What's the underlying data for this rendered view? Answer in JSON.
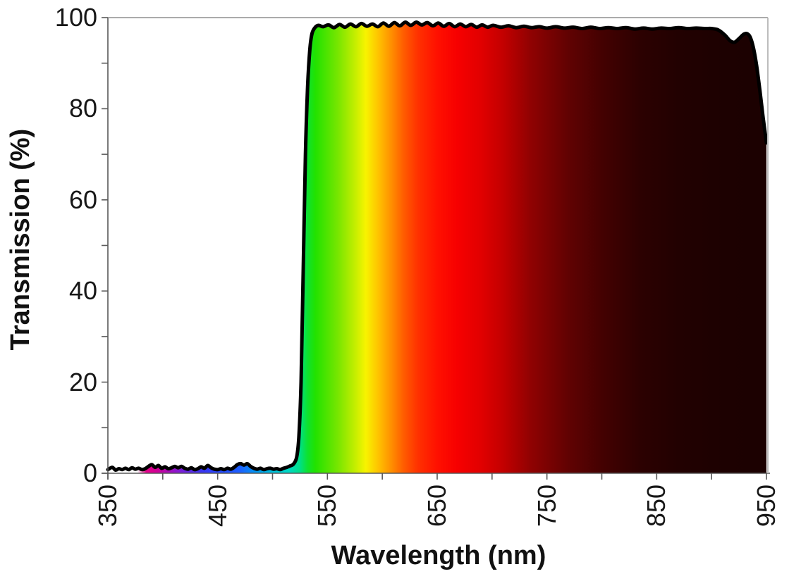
{
  "figure": {
    "background": "#ffffff",
    "curve_color": "#000000",
    "axis_color": "#595959",
    "top_border_color": "#8f8f8f",
    "right_border_color": "#bdbdbd",
    "tick_label_color": "#171717"
  },
  "chart_data": {
    "type": "area",
    "title": "",
    "xlabel": "Wavelength (nm)",
    "ylabel": "Transmission (%)",
    "xlim": [
      350,
      950
    ],
    "ylim": [
      0,
      100
    ],
    "grid": "off",
    "legend": "none",
    "x_tick_labels": [
      "350",
      "450",
      "550",
      "650",
      "750",
      "850",
      "950"
    ],
    "x_major_ticks": [
      350,
      450,
      550,
      650,
      750,
      850,
      950
    ],
    "x_minor_ticks": [
      400,
      500,
      600,
      700,
      800,
      900
    ],
    "y_tick_labels": [
      "0",
      "20",
      "40",
      "60",
      "80",
      "100"
    ],
    "y_major_ticks": [
      0,
      20,
      40,
      60,
      80,
      100
    ],
    "y_minor_ticks": [
      10,
      30,
      50,
      70,
      90
    ],
    "series": [
      {
        "name": "Transmission",
        "points": [
          [
            350,
            0.8
          ],
          [
            354,
            1.3
          ],
          [
            357,
            0.7
          ],
          [
            360,
            1.0
          ],
          [
            363,
            0.8
          ],
          [
            366,
            1.1
          ],
          [
            369,
            0.8
          ],
          [
            372,
            1.2
          ],
          [
            375,
            0.9
          ],
          [
            378,
            1.1
          ],
          [
            381,
            0.8
          ],
          [
            384,
            1.0
          ],
          [
            387,
            1.5
          ],
          [
            390,
            1.9
          ],
          [
            393,
            1.3
          ],
          [
            396,
            1.7
          ],
          [
            399,
            1.1
          ],
          [
            402,
            1.4
          ],
          [
            405,
            1.0
          ],
          [
            408,
            1.2
          ],
          [
            411,
            1.5
          ],
          [
            414,
            1.2
          ],
          [
            417,
            1.5
          ],
          [
            420,
            1.1
          ],
          [
            423,
            0.9
          ],
          [
            426,
            1.2
          ],
          [
            429,
            0.8
          ],
          [
            432,
            1.0
          ],
          [
            435,
            1.4
          ],
          [
            438,
            1.1
          ],
          [
            441,
            1.7
          ],
          [
            444,
            1.2
          ],
          [
            447,
            0.9
          ],
          [
            450,
            0.8
          ],
          [
            453,
            1.0
          ],
          [
            456,
            0.8
          ],
          [
            459,
            1.1
          ],
          [
            462,
            0.9
          ],
          [
            465,
            1.3
          ],
          [
            468,
            1.9
          ],
          [
            471,
            2.1
          ],
          [
            474,
            1.8
          ],
          [
            477,
            2.1
          ],
          [
            480,
            1.5
          ],
          [
            483,
            1.1
          ],
          [
            486,
            0.9
          ],
          [
            489,
            1.1
          ],
          [
            492,
            0.8
          ],
          [
            495,
            1.0
          ],
          [
            498,
            1.1
          ],
          [
            501,
            0.9
          ],
          [
            504,
            1.0
          ],
          [
            507,
            0.8
          ],
          [
            510,
            1.1
          ],
          [
            513,
            1.3
          ],
          [
            516,
            1.6
          ],
          [
            519,
            2.0
          ],
          [
            522,
            3.5
          ],
          [
            524,
            8
          ],
          [
            526,
            20
          ],
          [
            528,
            45
          ],
          [
            530,
            70
          ],
          [
            532,
            85
          ],
          [
            534,
            93
          ],
          [
            536,
            96.5
          ],
          [
            539,
            97.9
          ],
          [
            542,
            98.3
          ],
          [
            546,
            98.0
          ],
          [
            551,
            98.4
          ],
          [
            556,
            97.8
          ],
          [
            561,
            98.5
          ],
          [
            566,
            97.9
          ],
          [
            571,
            98.6
          ],
          [
            576,
            98.0
          ],
          [
            581,
            98.7
          ],
          [
            586,
            98.1
          ],
          [
            591,
            98.6
          ],
          [
            596,
            98.0
          ],
          [
            601,
            98.8
          ],
          [
            606,
            98.1
          ],
          [
            611,
            98.9
          ],
          [
            616,
            98.2
          ],
          [
            621,
            99.0
          ],
          [
            626,
            98.3
          ],
          [
            631,
            99.0
          ],
          [
            636,
            98.4
          ],
          [
            641,
            98.9
          ],
          [
            646,
            98.2
          ],
          [
            651,
            98.8
          ],
          [
            656,
            98.1
          ],
          [
            661,
            98.7
          ],
          [
            666,
            98.0
          ],
          [
            671,
            98.6
          ],
          [
            676,
            98.0
          ],
          [
            681,
            98.5
          ],
          [
            686,
            97.9
          ],
          [
            691,
            98.4
          ],
          [
            696,
            97.9
          ],
          [
            701,
            98.3
          ],
          [
            708,
            97.9
          ],
          [
            715,
            98.2
          ],
          [
            722,
            97.8
          ],
          [
            729,
            98.1
          ],
          [
            736,
            97.8
          ],
          [
            743,
            98.0
          ],
          [
            750,
            97.7
          ],
          [
            758,
            98.0
          ],
          [
            766,
            97.7
          ],
          [
            774,
            97.9
          ],
          [
            782,
            97.6
          ],
          [
            790,
            97.9
          ],
          [
            798,
            97.6
          ],
          [
            806,
            97.8
          ],
          [
            814,
            97.6
          ],
          [
            822,
            97.8
          ],
          [
            830,
            97.5
          ],
          [
            838,
            97.7
          ],
          [
            846,
            97.5
          ],
          [
            854,
            97.7
          ],
          [
            862,
            97.6
          ],
          [
            870,
            97.8
          ],
          [
            878,
            97.6
          ],
          [
            886,
            97.7
          ],
          [
            894,
            97.6
          ],
          [
            900,
            97.6
          ],
          [
            906,
            97.3
          ],
          [
            912,
            96.2
          ],
          [
            917,
            94.9
          ],
          [
            921,
            94.6
          ],
          [
            925,
            95.4
          ],
          [
            929,
            96.3
          ],
          [
            932,
            96.5
          ],
          [
            935,
            95.8
          ],
          [
            938,
            93.5
          ],
          [
            941,
            89.5
          ],
          [
            944,
            84.0
          ],
          [
            947,
            78.0
          ],
          [
            950,
            72.5
          ]
        ]
      }
    ],
    "fill_gradient_stops": [
      {
        "nm": 350,
        "color": "#ffffff"
      },
      {
        "nm": 377,
        "color": "#ffffff"
      },
      {
        "nm": 385,
        "color": "#e6008a"
      },
      {
        "nm": 395,
        "color": "#cf0096"
      },
      {
        "nm": 410,
        "color": "#9612c8"
      },
      {
        "nm": 420,
        "color": "#6e23dd"
      },
      {
        "nm": 435,
        "color": "#3b34f0"
      },
      {
        "nm": 450,
        "color": "#2746ff"
      },
      {
        "nm": 470,
        "color": "#1d5fff"
      },
      {
        "nm": 485,
        "color": "#0096f0"
      },
      {
        "nm": 500,
        "color": "#00c2de"
      },
      {
        "nm": 515,
        "color": "#00d9c2"
      },
      {
        "nm": 525,
        "color": "#00df86"
      },
      {
        "nm": 532,
        "color": "#0ee22e"
      },
      {
        "nm": 539,
        "color": "#22e200"
      },
      {
        "nm": 560,
        "color": "#7ae600"
      },
      {
        "nm": 575,
        "color": "#c3ee00"
      },
      {
        "nm": 585,
        "color": "#f8f300"
      },
      {
        "nm": 597,
        "color": "#ffc000"
      },
      {
        "nm": 608,
        "color": "#ff9000"
      },
      {
        "nm": 620,
        "color": "#ff5a00"
      },
      {
        "nm": 633,
        "color": "#ff3000"
      },
      {
        "nm": 650,
        "color": "#ff1000"
      },
      {
        "nm": 668,
        "color": "#f70000"
      },
      {
        "nm": 690,
        "color": "#e10000"
      },
      {
        "nm": 710,
        "color": "#c30000"
      },
      {
        "nm": 735,
        "color": "#900202"
      },
      {
        "nm": 770,
        "color": "#600202"
      },
      {
        "nm": 800,
        "color": "#440101"
      },
      {
        "nm": 835,
        "color": "#2c0101"
      },
      {
        "nm": 870,
        "color": "#220101"
      },
      {
        "nm": 910,
        "color": "#1d0101"
      },
      {
        "nm": 950,
        "color": "#1c0101"
      }
    ]
  }
}
